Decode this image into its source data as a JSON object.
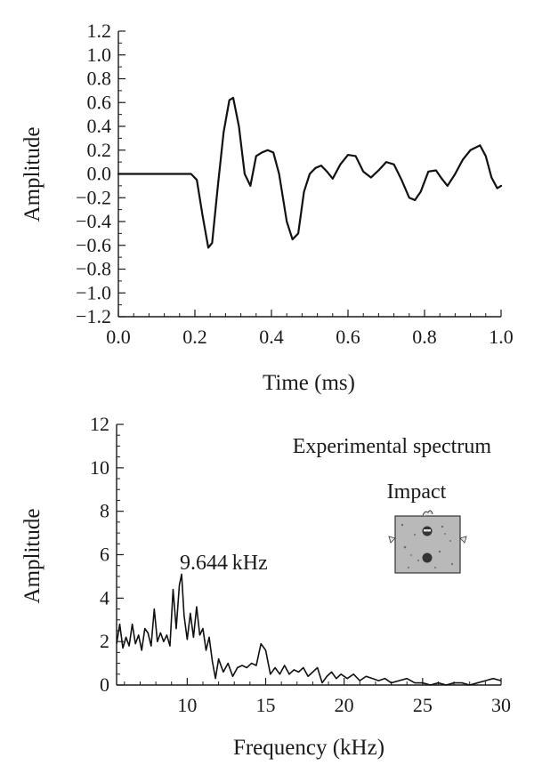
{
  "chart_data": [
    {
      "type": "line",
      "title": "",
      "xlabel": "Time (ms)",
      "ylabel": "Amplitude",
      "xlim": [
        0.0,
        1.0
      ],
      "ylim": [
        -1.2,
        1.2
      ],
      "xticks": [
        0.0,
        0.2,
        0.4,
        0.6,
        0.8,
        1.0
      ],
      "xtick_labels": [
        "0.0",
        "0.2",
        "0.4",
        "0.6",
        "0.8",
        "1.0"
      ],
      "yticks": [
        1.2,
        1.0,
        0.8,
        0.6,
        0.4,
        0.2,
        0.0,
        -0.2,
        -0.4,
        -0.6,
        -0.8,
        -1.0,
        -1.2
      ],
      "ytick_labels": [
        "1.2",
        "1.0",
        "0.8",
        "0.6",
        "0.4",
        "0.2",
        "0.0",
        "−0.2",
        "−0.4",
        "−0.6",
        "−0.8",
        "−1.0",
        "−1.2"
      ],
      "grid": false,
      "series": [
        {
          "x": [
            0.0,
            0.05,
            0.1,
            0.15,
            0.19,
            0.205,
            0.22,
            0.235,
            0.245,
            0.26,
            0.275,
            0.29,
            0.3,
            0.315,
            0.33,
            0.345,
            0.36,
            0.375,
            0.39,
            0.405,
            0.42,
            0.44,
            0.455,
            0.47,
            0.485,
            0.5,
            0.515,
            0.53,
            0.545,
            0.56,
            0.58,
            0.6,
            0.62,
            0.64,
            0.66,
            0.68,
            0.7,
            0.72,
            0.74,
            0.76,
            0.775,
            0.79,
            0.81,
            0.83,
            0.845,
            0.86,
            0.88,
            0.9,
            0.92,
            0.945,
            0.96,
            0.975,
            0.99,
            1.0
          ],
          "y": [
            0.0,
            0.0,
            0.0,
            0.0,
            0.0,
            -0.05,
            -0.35,
            -0.62,
            -0.58,
            -0.1,
            0.35,
            0.62,
            0.64,
            0.4,
            0.0,
            -0.1,
            0.15,
            0.18,
            0.2,
            0.18,
            0.0,
            -0.4,
            -0.55,
            -0.5,
            -0.15,
            0.0,
            0.05,
            0.07,
            0.02,
            -0.04,
            0.08,
            0.16,
            0.15,
            0.02,
            -0.03,
            0.03,
            0.1,
            0.08,
            -0.05,
            -0.2,
            -0.22,
            -0.15,
            0.02,
            0.03,
            -0.04,
            -0.1,
            0.0,
            0.12,
            0.2,
            0.24,
            0.15,
            -0.03,
            -0.12,
            -0.1
          ]
        }
      ]
    },
    {
      "type": "line",
      "title": "",
      "xlabel": "Frequency (kHz)",
      "ylabel": "Amplitude",
      "xlim": [
        5.5,
        30
      ],
      "ylim": [
        0,
        12
      ],
      "xticks": [
        10,
        15,
        20,
        25,
        30
      ],
      "xtick_labels": [
        "10",
        "15",
        "20",
        "25",
        "30"
      ],
      "yticks": [
        0,
        2,
        4,
        6,
        8,
        10,
        12
      ],
      "ytick_labels": [
        "0",
        "2",
        "4",
        "6",
        "8",
        "10",
        "12"
      ],
      "grid": false,
      "legend_position": "top-right",
      "annotations": {
        "series_label": "Experimental spectrum",
        "peak_label": "9.644 kHz",
        "peak": {
          "x": 9.644,
          "y": 5.1
        },
        "inset_label": "Impact"
      },
      "series": [
        {
          "x": [
            5.5,
            5.7,
            5.9,
            6.1,
            6.3,
            6.5,
            6.7,
            6.9,
            7.1,
            7.3,
            7.5,
            7.7,
            7.9,
            8.1,
            8.3,
            8.5,
            8.7,
            8.9,
            9.1,
            9.3,
            9.5,
            9.644,
            9.8,
            10.0,
            10.2,
            10.4,
            10.6,
            10.8,
            11.0,
            11.2,
            11.4,
            11.6,
            11.8,
            12.0,
            12.3,
            12.6,
            12.9,
            13.2,
            13.5,
            13.8,
            14.1,
            14.4,
            14.7,
            15.0,
            15.3,
            15.6,
            15.9,
            16.2,
            16.5,
            16.8,
            17.1,
            17.4,
            17.7,
            18.0,
            18.3,
            18.6,
            18.9,
            19.2,
            19.5,
            19.8,
            20.2,
            20.6,
            21.0,
            21.4,
            21.8,
            22.2,
            22.6,
            23.0,
            23.5,
            24.0,
            24.5,
            25.0,
            25.5,
            26.0,
            26.5,
            27.0,
            27.5,
            28.0,
            28.5,
            29.0,
            29.5,
            30.0
          ],
          "y": [
            1.9,
            2.8,
            1.7,
            2.2,
            1.8,
            2.8,
            1.9,
            2.3,
            1.6,
            2.6,
            2.4,
            1.8,
            3.5,
            2.0,
            2.4,
            2.0,
            2.3,
            1.8,
            4.4,
            2.6,
            4.6,
            5.1,
            3.2,
            2.1,
            3.3,
            2.2,
            3.6,
            2.3,
            2.6,
            1.6,
            2.2,
            1.1,
            0.3,
            1.2,
            0.6,
            1.0,
            0.4,
            0.8,
            0.9,
            0.8,
            1.0,
            0.9,
            1.9,
            1.6,
            0.5,
            0.8,
            0.5,
            0.9,
            0.5,
            0.7,
            0.6,
            0.8,
            0.4,
            0.6,
            0.8,
            0.1,
            0.4,
            0.6,
            0.3,
            0.5,
            0.3,
            0.5,
            0.2,
            0.4,
            0.3,
            0.2,
            0.3,
            0.1,
            0.2,
            0.3,
            0.1,
            0.1,
            0.0,
            0.1,
            0.0,
            0.1,
            0.1,
            0.0,
            0.1,
            0.2,
            0.3,
            0.2
          ]
        }
      ]
    }
  ]
}
